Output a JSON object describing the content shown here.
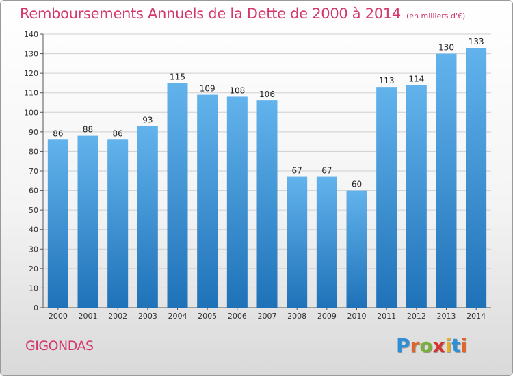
{
  "title": "Remboursements Annuels de la Dette de 2000 à 2014",
  "unit_note": "(en milliers d'€)",
  "commune": "GIGONDAS",
  "logo": {
    "text": "Proxiti",
    "letter_colors": [
      "#2e8fd6",
      "#e0652b",
      "#7ab03a",
      "#d6332c",
      "#e8b21e",
      "#2e8fd6",
      "#e0652b"
    ]
  },
  "colors": {
    "bar_top": "#62b3ec",
    "bar_bottom": "#1f72b8",
    "grid": "#cfcfcf",
    "title": "#d4386a"
  },
  "chart_data": {
    "type": "bar",
    "categories": [
      "2000",
      "2001",
      "2002",
      "2003",
      "2004",
      "2005",
      "2006",
      "2007",
      "2008",
      "2009",
      "2010",
      "2011",
      "2012",
      "2013",
      "2014"
    ],
    "values": [
      86,
      88,
      86,
      93,
      115,
      109,
      108,
      106,
      67,
      67,
      60,
      113,
      114,
      130,
      133
    ],
    "ylim": [
      0,
      140
    ],
    "yticks": [
      0,
      10,
      20,
      30,
      40,
      50,
      60,
      70,
      80,
      90,
      100,
      110,
      120,
      130,
      140
    ],
    "grid": true,
    "xlabel": "",
    "ylabel": ""
  }
}
